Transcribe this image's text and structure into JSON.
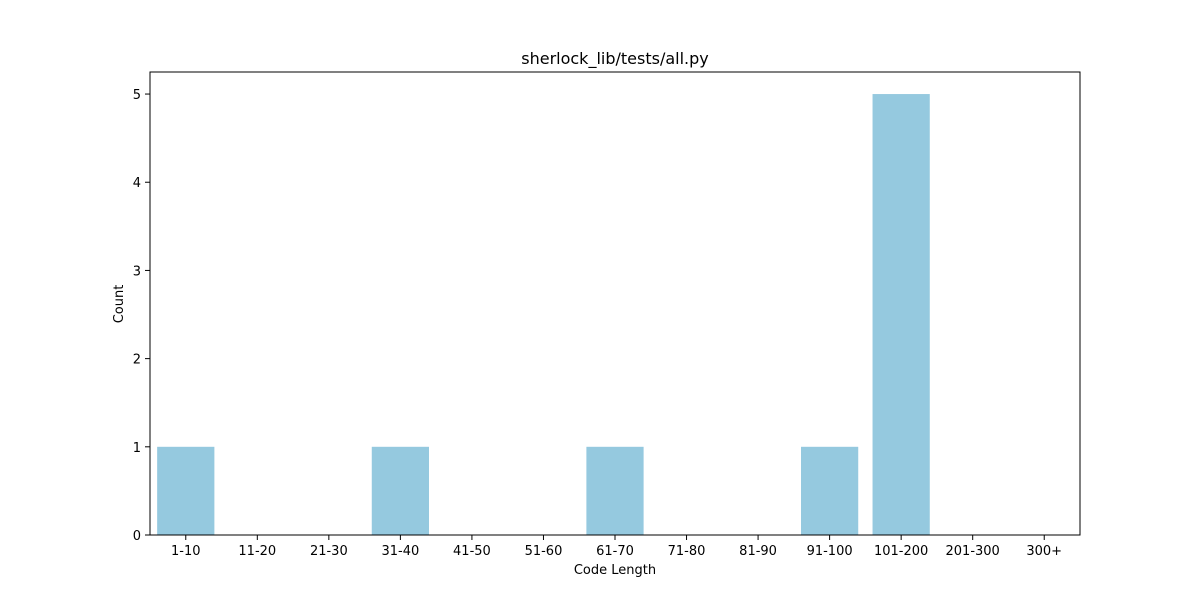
{
  "chart_data": {
    "type": "bar",
    "title": "sherlock_lib/tests/all.py",
    "xlabel": "Code Length",
    "ylabel": "Count",
    "categories": [
      "1-10",
      "11-20",
      "21-30",
      "31-40",
      "41-50",
      "51-60",
      "61-70",
      "71-80",
      "81-90",
      "91-100",
      "101-200",
      "201-300",
      "300+"
    ],
    "values": [
      1,
      0,
      0,
      1,
      0,
      0,
      1,
      0,
      0,
      1,
      5,
      0,
      0
    ],
    "ylim": [
      0,
      5.25
    ],
    "yticks": [
      0,
      1,
      2,
      3,
      4,
      5
    ],
    "bar_color": "#95c9df",
    "grid": false,
    "legend": false
  }
}
